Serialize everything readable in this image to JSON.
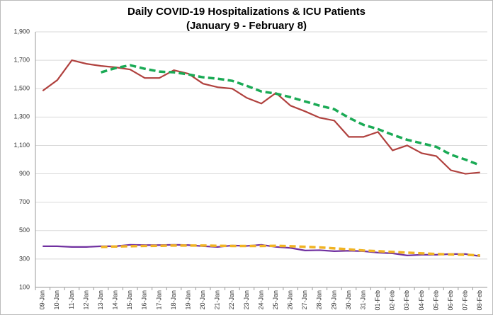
{
  "chart_data": {
    "type": "line",
    "title": "Daily COVID-19 Hospitalizations & ICU Patients",
    "subtitle": "(January 9 - February 8)",
    "categories": [
      "09-Jan",
      "10-Jan",
      "11-Jan",
      "12-Jan",
      "13-Jan",
      "14-Jan",
      "15-Jan",
      "16-Jan",
      "17-Jan",
      "18-Jan",
      "19-Jan",
      "20-Jan",
      "21-Jan",
      "22-Jan",
      "23-Jan",
      "24-Jan",
      "25-Jan",
      "26-Jan",
      "27-Jan",
      "28-Jan",
      "29-Jan",
      "30-Jan",
      "31-Jan",
      "01-Feb",
      "02-Feb",
      "03-Feb",
      "04-Feb",
      "05-Feb",
      "06-Feb",
      "07-Feb",
      "08-Feb"
    ],
    "series": [
      {
        "color": "#b0413e",
        "dashed": false,
        "values": [
          1485,
          1560,
          1700,
          1675,
          1660,
          1650,
          1635,
          1575,
          1575,
          1630,
          1605,
          1535,
          1510,
          1500,
          1435,
          1395,
          1470,
          1380,
          1340,
          1295,
          1275,
          1160,
          1160,
          1195,
          1065,
          1100,
          1045,
          1025,
          925,
          900,
          910
        ]
      },
      {
        "color": "#1aaa55",
        "dashed": true,
        "values": [
          null,
          null,
          null,
          null,
          1615,
          1645,
          1665,
          1640,
          1620,
          1615,
          1600,
          1580,
          1570,
          1555,
          1520,
          1480,
          1465,
          1440,
          1410,
          1380,
          1355,
          1295,
          1245,
          1215,
          1175,
          1140,
          1115,
          1090,
          1035,
          1000,
          960
        ]
      },
      {
        "color": "#7030a0",
        "dashed": false,
        "values": [
          390,
          390,
          385,
          385,
          390,
          390,
          400,
          398,
          398,
          400,
          398,
          390,
          385,
          395,
          392,
          400,
          385,
          378,
          360,
          362,
          355,
          358,
          355,
          345,
          340,
          325,
          330,
          330,
          335,
          335,
          320
        ]
      },
      {
        "color": "#f0b323",
        "dashed": true,
        "values": [
          null,
          null,
          null,
          null,
          385,
          388,
          390,
          392,
          393,
          395,
          395,
          395,
          393,
          392,
          392,
          392,
          393,
          390,
          386,
          382,
          375,
          368,
          360,
          355,
          350,
          345,
          340,
          335,
          332,
          330,
          325
        ]
      }
    ],
    "ylim": [
      100,
      1900
    ],
    "yticks": [
      100,
      300,
      500,
      700,
      900,
      {
        "value": 1100,
        "label": "1,100"
      },
      {
        "value": 1300,
        "label": "1,300"
      },
      {
        "value": 1500,
        "label": "1,500"
      },
      {
        "value": 1700,
        "label": "1,700"
      },
      {
        "value": 1900,
        "label": "1,900"
      }
    ],
    "grid": true
  }
}
